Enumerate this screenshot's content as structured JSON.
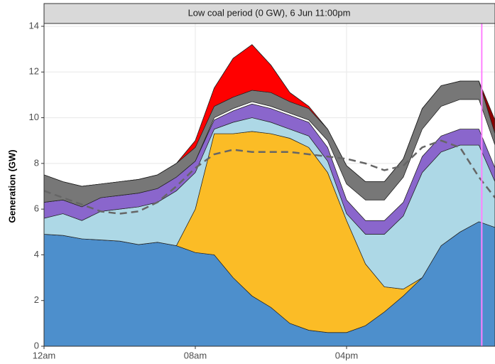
{
  "chart_data": {
    "type": "stacked-area",
    "title": "Low coal period (0 GW), 6 Jun 11:00pm",
    "y_label": "Generation (GW)",
    "x": [
      0,
      1,
      2,
      3,
      4,
      5,
      6,
      7,
      8,
      9,
      10,
      11,
      12,
      13,
      14,
      15,
      16,
      17,
      18,
      19,
      20,
      21,
      22,
      23,
      23.85
    ],
    "series": [
      {
        "color": "#4d8fcc",
        "values": [
          4.9,
          4.85,
          4.7,
          4.65,
          4.6,
          4.45,
          4.55,
          4.4,
          4.1,
          4.0,
          3.0,
          2.2,
          1.7,
          1.0,
          0.7,
          0.6,
          0.6,
          0.9,
          1.5,
          2.2,
          3.0,
          4.4,
          5.0,
          5.45,
          5.2
        ]
      },
      {
        "color": "#fbbc26",
        "values": [
          0,
          0,
          0,
          0,
          0,
          0,
          0,
          0,
          1.9,
          5.3,
          6.3,
          7.2,
          7.6,
          8.1,
          8.0,
          7.0,
          4.9,
          2.7,
          1.1,
          0.3,
          0,
          0,
          0,
          0,
          0
        ]
      },
      {
        "color": "#add8e6",
        "values": [
          0.7,
          0.95,
          0.8,
          1.25,
          1.4,
          1.65,
          1.75,
          2.4,
          1.6,
          0.2,
          0.5,
          0.6,
          0.5,
          0.4,
          0.5,
          0.5,
          0.3,
          1.3,
          2.3,
          3.2,
          4.6,
          4.1,
          3.8,
          3.35,
          2.0
        ]
      },
      {
        "color": "#8a66cc",
        "values": [
          0.7,
          0.6,
          0.6,
          0.6,
          0.6,
          0.6,
          0.6,
          0.6,
          0.5,
          0.4,
          0.5,
          0.6,
          0.6,
          0.6,
          0.6,
          0.6,
          0.6,
          0.6,
          0.6,
          0.6,
          0.7,
          0.7,
          0.7,
          0.7,
          0.6
        ]
      },
      {
        "color": "#ffffff",
        "values": [
          0,
          0,
          0,
          0,
          0,
          0,
          0,
          0,
          0,
          0.1,
          0.1,
          0.1,
          0.1,
          0.1,
          0.1,
          0.3,
          0.7,
          0.9,
          0.9,
          1.1,
          1.2,
          1.3,
          1.3,
          1.3,
          1.0
        ]
      },
      {
        "color": "#777777",
        "values": [
          1.2,
          0.8,
          0.9,
          0.6,
          0.6,
          0.6,
          0.6,
          0.6,
          0.6,
          0.5,
          0.5,
          0.5,
          0.6,
          0.5,
          0.5,
          0.5,
          0.8,
          0.8,
          0.8,
          0.8,
          0.9,
          0.9,
          0.8,
          0.8,
          0.5
        ]
      },
      {
        "color": "#ff0000",
        "values": [
          0,
          0,
          0,
          0,
          0,
          0,
          0,
          0,
          0.3,
          0.8,
          1.7,
          2.0,
          1.2,
          0.4,
          0.1,
          0,
          0,
          0,
          0,
          0,
          0,
          0,
          0,
          0,
          0
        ]
      },
      {
        "color": "#8b0000",
        "values": [
          0,
          0,
          0,
          0,
          0,
          0,
          0,
          0,
          0,
          0,
          0,
          0,
          0,
          0,
          0,
          0,
          0,
          0,
          0,
          0,
          0,
          0,
          0,
          0,
          0.6
        ]
      }
    ],
    "line": {
      "color": "#666666",
      "dashed": true,
      "values": [
        6.8,
        6.5,
        6.2,
        5.9,
        5.8,
        5.9,
        6.3,
        7.0,
        7.8,
        8.4,
        8.6,
        8.5,
        8.5,
        8.5,
        8.4,
        8.3,
        8.2,
        8.0,
        7.7,
        7.9,
        8.7,
        9.0,
        8.7,
        7.4,
        6.5
      ]
    },
    "marker_x": 23.15,
    "marker_color": "#ff80ff",
    "xlim": [
      0,
      23.85
    ],
    "xticks": [
      {
        "value": 0,
        "label": "12am"
      },
      {
        "value": 8,
        "label": "08am"
      },
      {
        "value": 16,
        "label": "04pm"
      }
    ],
    "ylim": [
      0,
      14
    ],
    "yticks": [
      0,
      2,
      4,
      6,
      8,
      10,
      12,
      14
    ],
    "grid": true
  }
}
